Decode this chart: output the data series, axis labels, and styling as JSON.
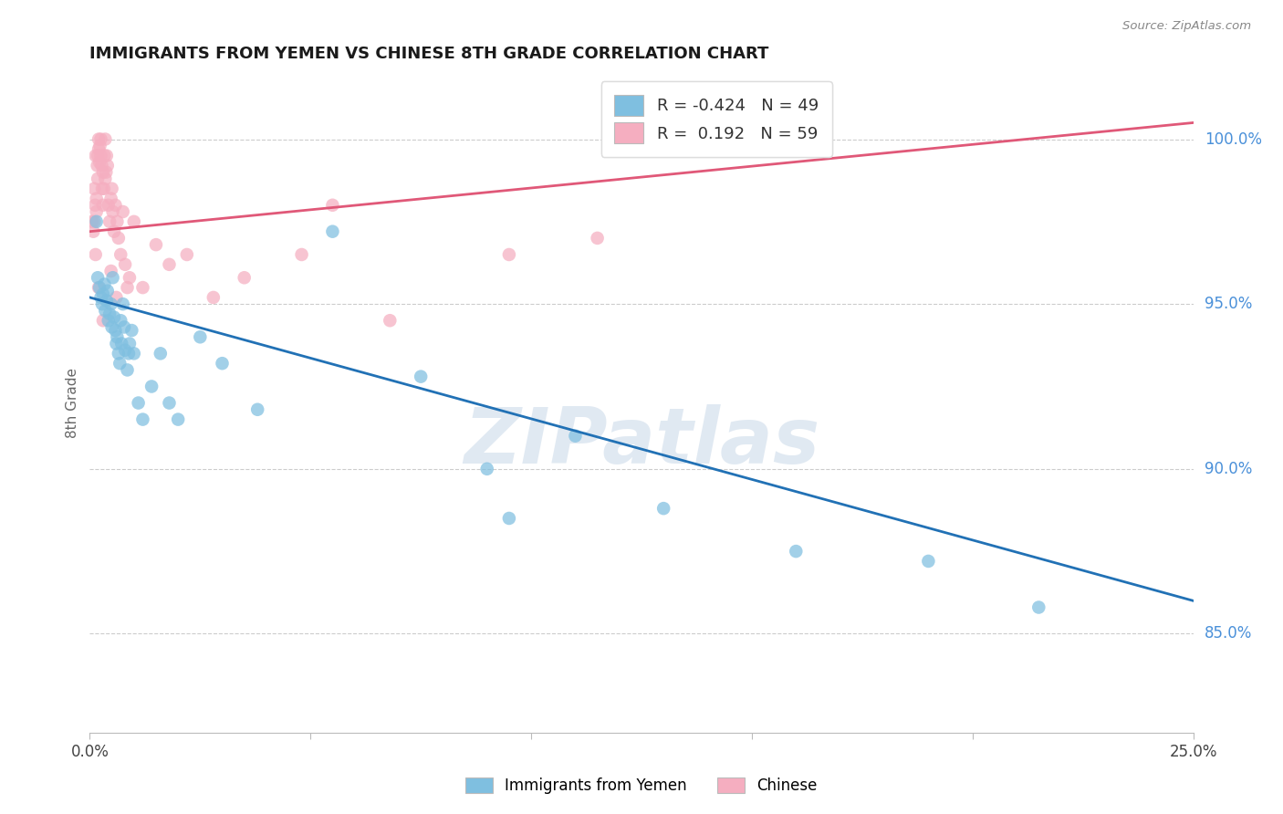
{
  "title": "IMMIGRANTS FROM YEMEN VS CHINESE 8TH GRADE CORRELATION CHART",
  "source": "Source: ZipAtlas.com",
  "ylabel": "8th Grade",
  "y_ticks": [
    85.0,
    90.0,
    95.0,
    100.0
  ],
  "y_tick_labels": [
    "85.0%",
    "90.0%",
    "95.0%",
    "100.0%"
  ],
  "x_min": 0.0,
  "x_max": 25.0,
  "y_min": 82.0,
  "y_max": 102.0,
  "legend_blue_R": "-0.424",
  "legend_blue_N": "49",
  "legend_pink_R": "0.192",
  "legend_pink_N": "59",
  "legend_label_blue": "Immigrants from Yemen",
  "legend_label_pink": "Chinese",
  "blue_color": "#7fbfe0",
  "pink_color": "#f5aec0",
  "blue_line_color": "#2171b5",
  "pink_line_color": "#e05878",
  "watermark": "ZIPatlas",
  "watermark_color": "#c8d8e8",
  "blue_scatter_x": [
    0.15,
    0.18,
    0.22,
    0.25,
    0.28,
    0.3,
    0.33,
    0.35,
    0.38,
    0.4,
    0.42,
    0.45,
    0.48,
    0.5,
    0.52,
    0.55,
    0.58,
    0.6,
    0.62,
    0.65,
    0.68,
    0.7,
    0.72,
    0.75,
    0.78,
    0.8,
    0.85,
    0.88,
    0.9,
    0.95,
    1.0,
    1.1,
    1.2,
    1.4,
    1.6,
    1.8,
    2.0,
    2.5,
    3.0,
    3.8,
    5.5,
    7.5,
    9.5,
    11.0,
    13.0,
    16.0,
    19.0,
    21.5,
    9.0
  ],
  "blue_scatter_y": [
    97.5,
    95.8,
    95.5,
    95.2,
    95.0,
    95.3,
    95.6,
    94.8,
    95.1,
    95.4,
    94.5,
    94.7,
    95.0,
    94.3,
    95.8,
    94.6,
    94.2,
    93.8,
    94.0,
    93.5,
    93.2,
    94.5,
    93.8,
    95.0,
    94.3,
    93.6,
    93.0,
    93.5,
    93.8,
    94.2,
    93.5,
    92.0,
    91.5,
    92.5,
    93.5,
    92.0,
    91.5,
    94.0,
    93.2,
    91.8,
    97.2,
    92.8,
    88.5,
    91.0,
    88.8,
    87.5,
    87.2,
    85.8,
    90.0
  ],
  "pink_scatter_x": [
    0.05,
    0.08,
    0.1,
    0.12,
    0.13,
    0.15,
    0.15,
    0.17,
    0.18,
    0.18,
    0.2,
    0.2,
    0.22,
    0.23,
    0.25,
    0.25,
    0.27,
    0.28,
    0.3,
    0.3,
    0.32,
    0.33,
    0.35,
    0.35,
    0.37,
    0.38,
    0.4,
    0.42,
    0.45,
    0.48,
    0.5,
    0.52,
    0.55,
    0.58,
    0.62,
    0.65,
    0.7,
    0.75,
    0.8,
    0.85,
    0.9,
    1.0,
    1.2,
    1.5,
    1.8,
    2.2,
    2.8,
    3.5,
    4.8,
    5.5,
    6.8,
    9.5,
    11.5,
    0.1,
    0.13,
    0.2,
    0.3,
    0.48,
    0.6
  ],
  "pink_scatter_y": [
    97.5,
    97.2,
    98.5,
    98.0,
    99.5,
    97.8,
    98.2,
    99.2,
    98.8,
    99.5,
    99.7,
    100.0,
    99.3,
    99.8,
    99.5,
    100.0,
    99.2,
    98.5,
    98.0,
    99.0,
    98.5,
    99.5,
    98.8,
    100.0,
    99.0,
    99.5,
    99.2,
    98.0,
    97.5,
    98.2,
    98.5,
    97.8,
    97.2,
    98.0,
    97.5,
    97.0,
    96.5,
    97.8,
    96.2,
    95.5,
    95.8,
    97.5,
    95.5,
    96.8,
    96.2,
    96.5,
    95.2,
    95.8,
    96.5,
    98.0,
    94.5,
    96.5,
    97.0,
    97.5,
    96.5,
    95.5,
    94.5,
    96.0,
    95.2
  ],
  "blue_trendline_x": [
    0.0,
    25.0
  ],
  "blue_trendline_y": [
    95.2,
    86.0
  ],
  "pink_trendline_x": [
    0.0,
    25.0
  ],
  "pink_trendline_y": [
    97.2,
    100.5
  ]
}
